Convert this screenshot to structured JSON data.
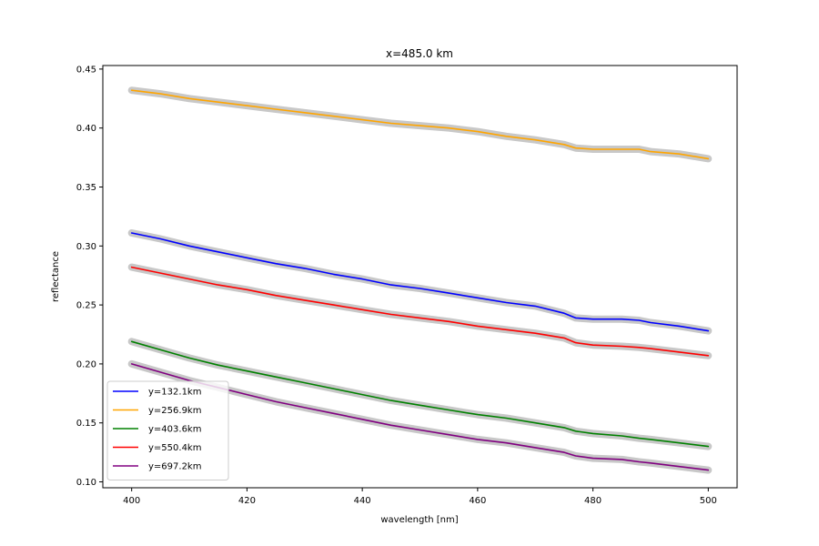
{
  "chart_data": {
    "type": "line",
    "title": "x=485.0 km",
    "xlabel": "wavelength [nm]",
    "ylabel": "reflectance",
    "xlim": [
      395,
      505
    ],
    "ylim": [
      0.095,
      0.453
    ],
    "xticks": [
      400,
      420,
      440,
      460,
      480,
      500
    ],
    "xtick_labels": [
      "400",
      "420",
      "440",
      "460",
      "480",
      "500"
    ],
    "yticks": [
      0.1,
      0.15,
      0.2,
      0.25,
      0.3,
      0.35,
      0.4,
      0.45
    ],
    "ytick_labels": [
      "0.10",
      "0.15",
      "0.20",
      "0.25",
      "0.30",
      "0.35",
      "0.40",
      "0.45"
    ],
    "grid": false,
    "legend_position": "lower-left",
    "uncertainty_band_color": "#c8c8c8",
    "x": [
      400,
      405,
      410,
      415,
      420,
      425,
      430,
      435,
      440,
      445,
      450,
      455,
      460,
      465,
      470,
      475,
      477,
      480,
      485,
      488,
      490,
      495,
      500
    ],
    "series": [
      {
        "name": "y=132.1km",
        "color": "#0000ff",
        "values": [
          0.311,
          0.306,
          0.3,
          0.295,
          0.29,
          0.285,
          0.281,
          0.276,
          0.272,
          0.267,
          0.264,
          0.26,
          0.256,
          0.252,
          0.249,
          0.243,
          0.239,
          0.238,
          0.238,
          0.237,
          0.235,
          0.232,
          0.228
        ]
      },
      {
        "name": "y=256.9km",
        "color": "#ffa500",
        "values": [
          0.432,
          0.429,
          0.425,
          0.422,
          0.419,
          0.416,
          0.413,
          0.41,
          0.407,
          0.404,
          0.402,
          0.4,
          0.397,
          0.393,
          0.39,
          0.386,
          0.383,
          0.382,
          0.382,
          0.382,
          0.38,
          0.378,
          0.374
        ]
      },
      {
        "name": "y=403.6km",
        "color": "#008000",
        "values": [
          0.219,
          0.212,
          0.205,
          0.199,
          0.194,
          0.189,
          0.184,
          0.179,
          0.174,
          0.169,
          0.165,
          0.161,
          0.157,
          0.154,
          0.15,
          0.146,
          0.143,
          0.141,
          0.139,
          0.137,
          0.136,
          0.133,
          0.13
        ]
      },
      {
        "name": "y=550.4km",
        "color": "#ff0000",
        "values": [
          0.282,
          0.277,
          0.272,
          0.267,
          0.263,
          0.258,
          0.254,
          0.25,
          0.246,
          0.242,
          0.239,
          0.236,
          0.232,
          0.229,
          0.226,
          0.222,
          0.218,
          0.216,
          0.215,
          0.214,
          0.213,
          0.21,
          0.207
        ]
      },
      {
        "name": "y=697.2km",
        "color": "#800080",
        "values": [
          0.2,
          0.193,
          0.186,
          0.18,
          0.174,
          0.168,
          0.163,
          0.158,
          0.153,
          0.148,
          0.144,
          0.14,
          0.136,
          0.133,
          0.129,
          0.125,
          0.122,
          0.12,
          0.119,
          0.117,
          0.116,
          0.113,
          0.11
        ]
      }
    ]
  }
}
